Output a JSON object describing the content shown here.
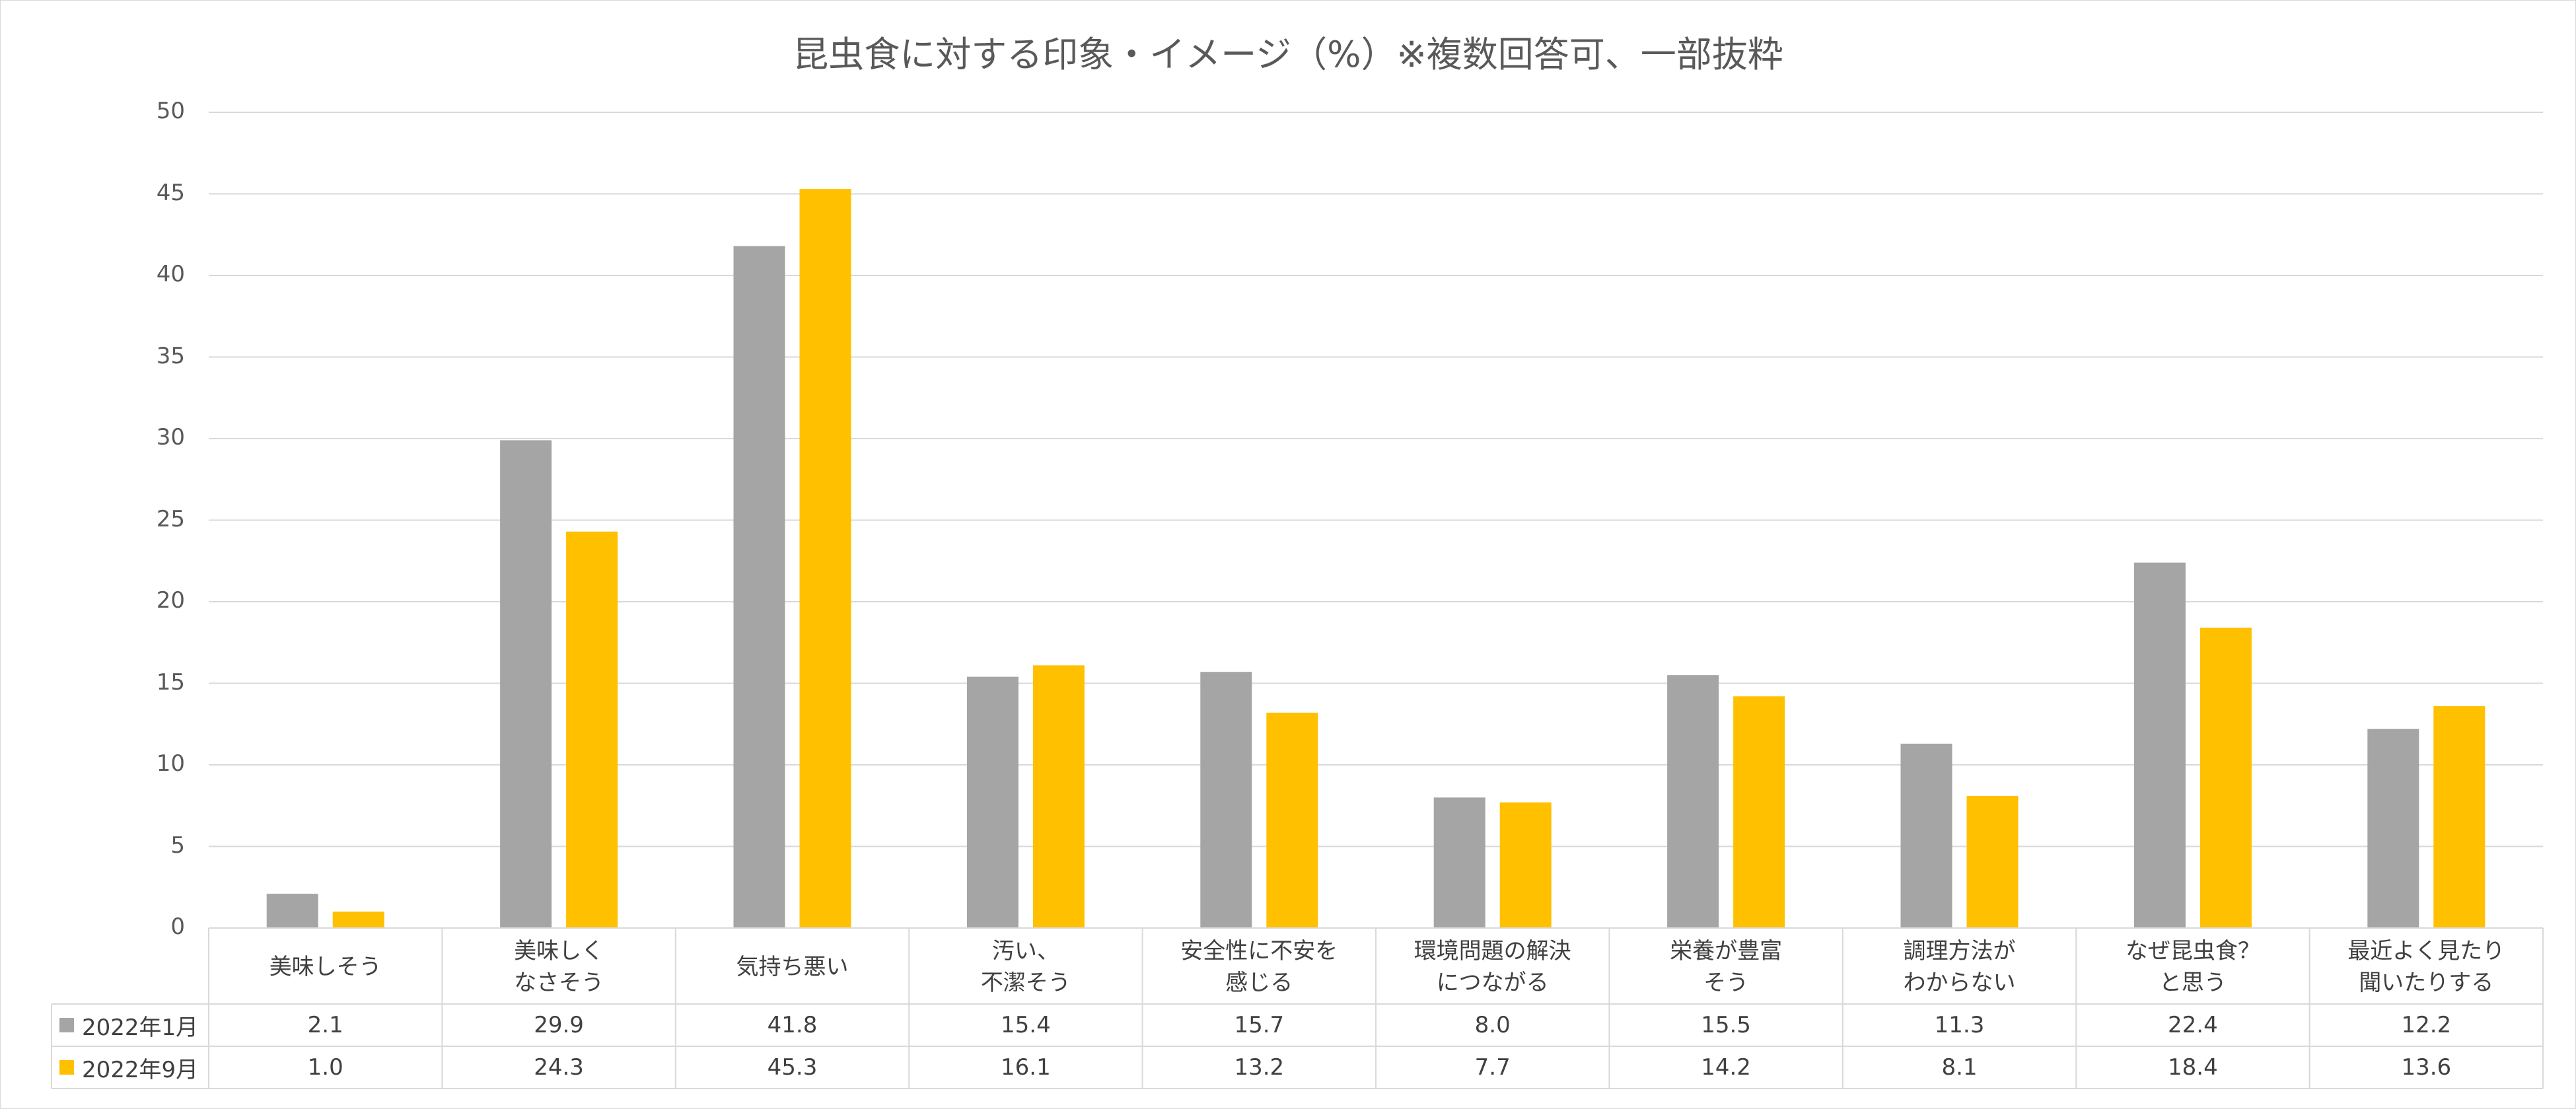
{
  "chart_data": {
    "type": "bar",
    "title": "昆虫食に対する印象・イメージ（%）※複数回答可、一部抜粋",
    "categories": [
      "美味しそう",
      "美味しく\nなさそう",
      "気持ち悪い",
      "汚い、\n不潔そう",
      "安全性に不安を\n感じる",
      "環境問題の解決\nにつながる",
      "栄養が豊富\nそう",
      "調理方法が\nわからない",
      "なぜ昆虫食？\nと思う",
      "最近よく見たり\n聞いたりする"
    ],
    "series": [
      {
        "name": "2022年1月",
        "color": "#a5a5a5",
        "values": [
          2.1,
          29.9,
          41.8,
          15.4,
          15.7,
          8.0,
          15.5,
          11.3,
          22.4,
          12.2
        ],
        "labels": [
          "2.1",
          "29.9",
          "41.8",
          "15.4",
          "15.7",
          "8.0",
          "15.5",
          "11.3",
          "22.4",
          "12.2"
        ]
      },
      {
        "name": "2022年9月",
        "color": "#ffc000",
        "values": [
          1.0,
          24.3,
          45.3,
          16.1,
          13.2,
          7.7,
          14.2,
          8.1,
          18.4,
          13.6
        ],
        "labels": [
          "1.0",
          "24.3",
          "45.3",
          "16.1",
          "13.2",
          "7.7",
          "14.2",
          "8.1",
          "18.4",
          "13.6"
        ]
      }
    ],
    "ylim": [
      0,
      50
    ],
    "yticks": [
      "0",
      "5",
      "10",
      "15",
      "20",
      "25",
      "30",
      "35",
      "40",
      "45",
      "50"
    ],
    "grid": true,
    "legend": "data-table"
  }
}
